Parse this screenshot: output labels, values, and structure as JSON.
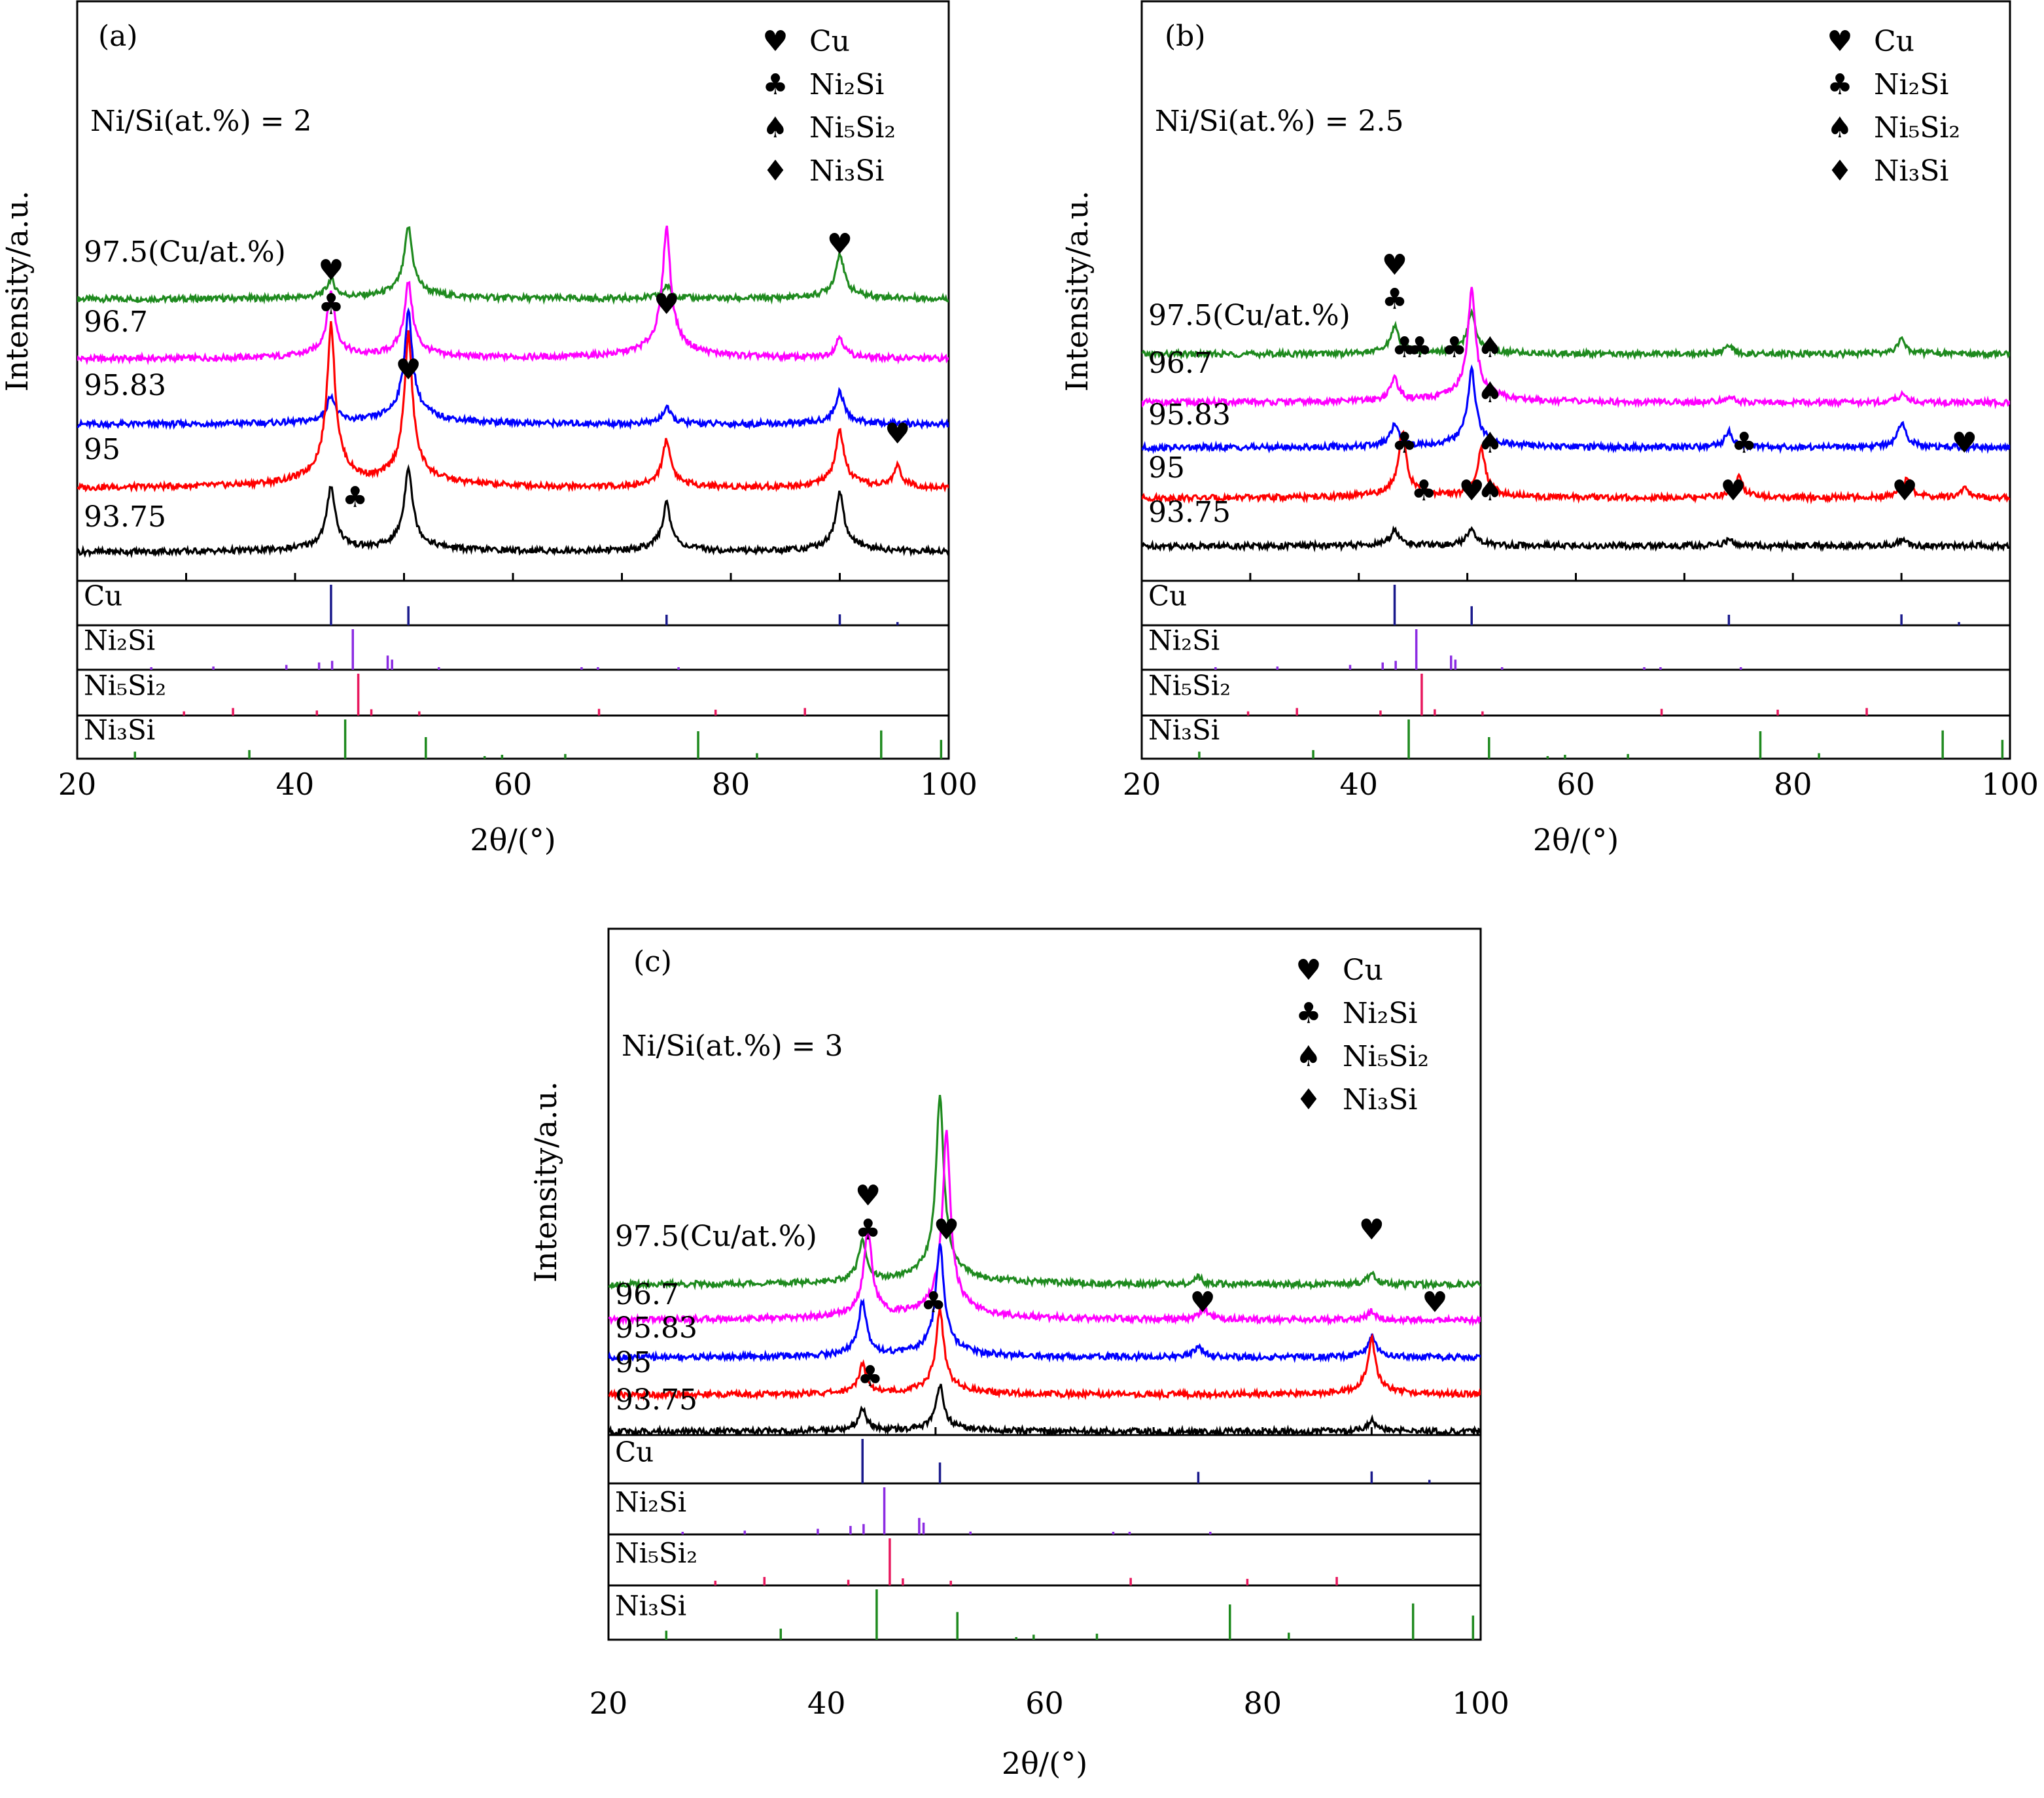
{
  "chart_data": [
    {
      "type": "line",
      "panel_label": "(a)",
      "note": "Ni/Si(at.%) = 2",
      "xlabel": "2θ/(°)",
      "ylabel": "Intensity/a.u.",
      "xlim": [
        20,
        100
      ],
      "xticks": [
        "20",
        "40",
        "60",
        "80",
        "100"
      ],
      "legend": [
        {
          "symbol": "♥",
          "label": "Cu"
        },
        {
          "symbol": "♣",
          "label": "Ni₂Si"
        },
        {
          "symbol": "♠",
          "label": "Ni₅Si₂"
        },
        {
          "symbol": "♦",
          "label": "Ni₃Si"
        }
      ],
      "series": [
        {
          "name": "97.5(Cu/at.%)",
          "color": "#1e8a1e",
          "peaks": [
            [
              43.3,
              0.4
            ],
            [
              50.4,
              4.0
            ],
            [
              74.1,
              0.2
            ],
            [
              90.0,
              1.8
            ]
          ]
        },
        {
          "name": "96.7",
          "color": "#ff00ff",
          "peaks": [
            [
              43.3,
              3.5
            ],
            [
              50.4,
              4.5
            ],
            [
              74.1,
              12.0
            ],
            [
              90.0,
              0.5
            ]
          ]
        },
        {
          "name": "95.83",
          "color": "#0000ff",
          "peaks": [
            [
              43.3,
              0.8
            ],
            [
              50.4,
              9.0
            ],
            [
              74.1,
              0.3
            ],
            [
              90.0,
              1.0
            ]
          ]
        },
        {
          "name": "95",
          "color": "#ff0000",
          "peaks": [
            [
              43.3,
              18.0
            ],
            [
              50.4,
              16.0
            ],
            [
              74.1,
              2.0
            ],
            [
              90.0,
              2.8
            ],
            [
              95.3,
              0.5
            ]
          ]
        },
        {
          "name": "93.75",
          "color": "#000000",
          "peaks": [
            [
              43.3,
              3.5
            ],
            [
              50.4,
              5.5
            ],
            [
              74.1,
              2.0
            ],
            [
              90.0,
              2.9
            ]
          ]
        }
      ],
      "markers": [
        {
          "symbol": "♣",
          "x": 43.3,
          "series": "96.7"
        },
        {
          "symbol": "♥",
          "x": 43.3,
          "series": "96.7"
        },
        {
          "symbol": "♥",
          "x": 50.4,
          "series": "95.83"
        },
        {
          "symbol": "♥",
          "x": 74.1,
          "series": "96.7"
        },
        {
          "symbol": "♥",
          "x": 90.0,
          "series": "97.5(Cu/at.%)"
        },
        {
          "symbol": "♥",
          "x": 95.3,
          "series": "95"
        },
        {
          "symbol": "♣",
          "x": 45.5,
          "series": "93.75"
        }
      ],
      "reference_patterns": [
        {
          "phase": "Cu",
          "color": "#1a1a8c",
          "lines": [
            [
              43.3,
              1.0
            ],
            [
              50.4,
              0.47
            ],
            [
              74.1,
              0.26
            ],
            [
              90.0,
              0.27
            ],
            [
              95.3,
              0.08
            ]
          ]
        },
        {
          "phase": "Ni₂Si",
          "color": "#8b2be2",
          "lines": [
            [
              26.8,
              0.05
            ],
            [
              32.5,
              0.08
            ],
            [
              39.2,
              0.12
            ],
            [
              42.2,
              0.18
            ],
            [
              43.4,
              0.22
            ],
            [
              45.3,
              1.0
            ],
            [
              48.5,
              0.35
            ],
            [
              48.9,
              0.25
            ],
            [
              53.2,
              0.06
            ],
            [
              66.3,
              0.05
            ],
            [
              67.8,
              0.05
            ],
            [
              75.2,
              0.05
            ]
          ]
        },
        {
          "phase": "Ni₅Si₂",
          "color": "#e8175d",
          "lines": [
            [
              29.8,
              0.1
            ],
            [
              34.3,
              0.18
            ],
            [
              42.0,
              0.12
            ],
            [
              45.8,
              1.0
            ],
            [
              47.0,
              0.15
            ],
            [
              51.4,
              0.1
            ],
            [
              67.9,
              0.16
            ],
            [
              78.6,
              0.14
            ],
            [
              86.8,
              0.18
            ]
          ]
        },
        {
          "phase": "Ni₃Si",
          "color": "#1e8a1e",
          "lines": [
            [
              25.3,
              0.18
            ],
            [
              35.8,
              0.22
            ],
            [
              44.6,
              1.0
            ],
            [
              52.0,
              0.55
            ],
            [
              57.4,
              0.05
            ],
            [
              59.0,
              0.1
            ],
            [
              64.8,
              0.12
            ],
            [
              77.0,
              0.7
            ],
            [
              82.4,
              0.14
            ],
            [
              93.8,
              0.72
            ],
            [
              99.3,
              0.48
            ]
          ]
        }
      ]
    },
    {
      "type": "line",
      "panel_label": "(b)",
      "note": "Ni/Si(at.%) = 2.5",
      "xlabel": "2θ/(°)",
      "ylabel": "Intensity/a.u.",
      "xlim": [
        20,
        100
      ],
      "xticks": [
        "20",
        "40",
        "60",
        "80",
        "100"
      ],
      "legend": [
        {
          "symbol": "♥",
          "label": "Cu"
        },
        {
          "symbol": "♣",
          "label": "Ni₂Si"
        },
        {
          "symbol": "♠",
          "label": "Ni₅Si₂"
        },
        {
          "symbol": "♦",
          "label": "Ni₃Si"
        }
      ],
      "series": [
        {
          "name": "97.5(Cu/at.%)",
          "color": "#1e8a1e",
          "peaks": [
            [
              43.3,
              2.5
            ],
            [
              50.4,
              5.0
            ],
            [
              74.1,
              0.3
            ],
            [
              90.0,
              0.8
            ]
          ]
        },
        {
          "name": "96.7",
          "color": "#ff00ff",
          "peaks": [
            [
              43.3,
              2.0
            ],
            [
              50.4,
              24.0
            ],
            [
              74.1,
              0.2
            ],
            [
              90.0,
              0.3
            ]
          ]
        },
        {
          "name": "95.83",
          "color": "#0000ff",
          "peaks": [
            [
              43.3,
              1.8
            ],
            [
              50.4,
              13.0
            ],
            [
              74.1,
              1.0
            ],
            [
              90.0,
              2.0
            ]
          ]
        },
        {
          "name": "95",
          "color": "#ff0000",
          "peaks": [
            [
              44.0,
              10.0
            ],
            [
              51.3,
              6.0
            ],
            [
              75.0,
              1.6
            ],
            [
              90.5,
              1.4
            ],
            [
              95.8,
              0.4
            ]
          ]
        },
        {
          "name": "93.75",
          "color": "#000000",
          "peaks": [
            [
              43.3,
              1.0
            ],
            [
              50.4,
              1.2
            ],
            [
              74.1,
              0.2
            ],
            [
              90.0,
              0.2
            ]
          ]
        }
      ],
      "markers": [
        {
          "symbol": "♣",
          "x": 43.3,
          "series": "97.5(Cu/at.%)"
        },
        {
          "symbol": "♥",
          "x": 43.3,
          "series": "97.5(Cu/at.%)"
        },
        {
          "symbol": "♣",
          "x": 44.2,
          "series": "96.7"
        },
        {
          "symbol": "♣",
          "x": 45.6,
          "series": "96.7"
        },
        {
          "symbol": "♣",
          "x": 48.8,
          "series": "96.7"
        },
        {
          "symbol": "♠",
          "x": 52.1,
          "series": "96.7"
        },
        {
          "symbol": "♠",
          "x": 52.1,
          "series": "95.83"
        },
        {
          "symbol": "♠",
          "x": 52.1,
          "series": "95"
        },
        {
          "symbol": "♣",
          "x": 44.2,
          "series": "95"
        },
        {
          "symbol": "♣",
          "x": 75.5,
          "series": "95"
        },
        {
          "symbol": "♥",
          "x": 95.8,
          "series": "95"
        },
        {
          "symbol": "♣",
          "x": 46.0,
          "series": "93.75"
        },
        {
          "symbol": "♥",
          "x": 50.4,
          "series": "93.75"
        },
        {
          "symbol": "♠",
          "x": 52.1,
          "series": "93.75"
        },
        {
          "symbol": "♥",
          "x": 74.5,
          "series": "93.75"
        },
        {
          "symbol": "♥",
          "x": 90.3,
          "series": "93.75"
        }
      ],
      "reference_patterns": [
        {
          "phase": "Cu",
          "color": "#1a1a8c",
          "lines": [
            [
              43.3,
              1.0
            ],
            [
              50.4,
              0.47
            ],
            [
              74.1,
              0.26
            ],
            [
              90.0,
              0.27
            ],
            [
              95.3,
              0.08
            ]
          ]
        },
        {
          "phase": "Ni₂Si",
          "color": "#8b2be2",
          "lines": [
            [
              26.8,
              0.05
            ],
            [
              32.5,
              0.08
            ],
            [
              39.2,
              0.12
            ],
            [
              42.2,
              0.18
            ],
            [
              43.4,
              0.22
            ],
            [
              45.3,
              1.0
            ],
            [
              48.5,
              0.35
            ],
            [
              48.9,
              0.25
            ],
            [
              53.2,
              0.06
            ],
            [
              66.3,
              0.05
            ],
            [
              67.8,
              0.05
            ],
            [
              75.2,
              0.05
            ]
          ]
        },
        {
          "phase": "Ni₅Si₂",
          "color": "#e8175d",
          "lines": [
            [
              29.8,
              0.1
            ],
            [
              34.3,
              0.18
            ],
            [
              42.0,
              0.12
            ],
            [
              45.8,
              1.0
            ],
            [
              47.0,
              0.15
            ],
            [
              51.4,
              0.1
            ],
            [
              67.9,
              0.16
            ],
            [
              78.6,
              0.14
            ],
            [
              86.8,
              0.18
            ]
          ]
        },
        {
          "phase": "Ni₃Si",
          "color": "#1e8a1e",
          "lines": [
            [
              25.3,
              0.18
            ],
            [
              35.8,
              0.22
            ],
            [
              44.6,
              1.0
            ],
            [
              52.0,
              0.55
            ],
            [
              57.4,
              0.05
            ],
            [
              59.0,
              0.1
            ],
            [
              64.8,
              0.12
            ],
            [
              77.0,
              0.7
            ],
            [
              82.4,
              0.14
            ],
            [
              93.8,
              0.72
            ],
            [
              99.3,
              0.48
            ]
          ]
        }
      ]
    },
    {
      "type": "line",
      "panel_label": "(c)",
      "note": "Ni/Si(at.%) = 3",
      "xlabel": "2θ/(°)",
      "ylabel": "Intensity/a.u.",
      "xlim": [
        20,
        100
      ],
      "xticks": [
        "20",
        "40",
        "60",
        "80",
        "100"
      ],
      "legend": [
        {
          "symbol": "♥",
          "label": "Cu"
        },
        {
          "symbol": "♣",
          "label": "Ni₂Si"
        },
        {
          "symbol": "♠",
          "label": "Ni₅Si₂"
        },
        {
          "symbol": "♦",
          "label": "Ni₃Si"
        }
      ],
      "series": [
        {
          "name": "97.5(Cu/at.%)",
          "color": "#1e8a1e",
          "peaks": [
            [
              43.3,
              2.8
            ],
            [
              50.4,
              30.0
            ],
            [
              74.1,
              0.15
            ],
            [
              90.0,
              0.3
            ]
          ]
        },
        {
          "name": "96.7",
          "color": "#ff00ff",
          "peaks": [
            [
              43.8,
              9.0
            ],
            [
              51.0,
              30.0
            ],
            [
              74.6,
              0.3
            ],
            [
              90.0,
              0.2
            ]
          ]
        },
        {
          "name": "95.83",
          "color": "#0000ff",
          "peaks": [
            [
              43.3,
              4.0
            ],
            [
              50.4,
              13.0
            ],
            [
              74.1,
              0.3
            ],
            [
              90.0,
              0.8
            ]
          ]
        },
        {
          "name": "95",
          "color": "#ff0000",
          "peaks": [
            [
              43.3,
              1.5
            ],
            [
              50.4,
              8.0
            ],
            [
              90.0,
              4.0
            ]
          ]
        },
        {
          "name": "93.75",
          "color": "#000000",
          "peaks": [
            [
              43.3,
              0.9
            ],
            [
              50.4,
              2.9
            ],
            [
              90.0,
              0.3
            ]
          ]
        }
      ],
      "markers": [
        {
          "symbol": "♣",
          "x": 43.8,
          "series": "97.5(Cu/at.%)"
        },
        {
          "symbol": "♥",
          "x": 43.8,
          "series": "97.5(Cu/at.%)"
        },
        {
          "symbol": "♥",
          "x": 51.0,
          "series": "97.5(Cu/at.%)"
        },
        {
          "symbol": "♥",
          "x": 90.0,
          "series": "97.5(Cu/at.%)"
        },
        {
          "symbol": "♣",
          "x": 49.8,
          "series": "95.83"
        },
        {
          "symbol": "♥",
          "x": 74.5,
          "series": "95.83"
        },
        {
          "symbol": "♥",
          "x": 95.8,
          "series": "95.83"
        },
        {
          "symbol": "♣",
          "x": 44.0,
          "series": "93.75"
        }
      ],
      "reference_patterns": [
        {
          "phase": "Cu",
          "color": "#1a1a8c",
          "lines": [
            [
              43.3,
              1.0
            ],
            [
              50.4,
              0.47
            ],
            [
              74.1,
              0.26
            ],
            [
              90.0,
              0.27
            ],
            [
              95.3,
              0.08
            ]
          ]
        },
        {
          "phase": "Ni₂Si",
          "color": "#8b2be2",
          "lines": [
            [
              26.8,
              0.05
            ],
            [
              32.5,
              0.08
            ],
            [
              39.2,
              0.12
            ],
            [
              42.2,
              0.18
            ],
            [
              43.4,
              0.22
            ],
            [
              45.3,
              1.0
            ],
            [
              48.5,
              0.35
            ],
            [
              48.9,
              0.25
            ],
            [
              53.2,
              0.06
            ],
            [
              66.3,
              0.05
            ],
            [
              67.8,
              0.05
            ],
            [
              75.2,
              0.05
            ]
          ]
        },
        {
          "phase": "Ni₅Si₂",
          "color": "#e8175d",
          "lines": [
            [
              29.8,
              0.1
            ],
            [
              34.3,
              0.18
            ],
            [
              42.0,
              0.12
            ],
            [
              45.8,
              1.0
            ],
            [
              47.0,
              0.15
            ],
            [
              51.4,
              0.1
            ],
            [
              67.9,
              0.16
            ],
            [
              78.6,
              0.14
            ],
            [
              86.8,
              0.18
            ]
          ]
        },
        {
          "phase": "Ni₃Si",
          "color": "#1e8a1e",
          "lines": [
            [
              25.3,
              0.18
            ],
            [
              35.8,
              0.22
            ],
            [
              44.6,
              1.0
            ],
            [
              52.0,
              0.55
            ],
            [
              57.4,
              0.05
            ],
            [
              59.0,
              0.1
            ],
            [
              64.8,
              0.12
            ],
            [
              77.0,
              0.7
            ],
            [
              82.4,
              0.14
            ],
            [
              93.8,
              0.72
            ],
            [
              99.3,
              0.48
            ]
          ]
        }
      ]
    }
  ]
}
